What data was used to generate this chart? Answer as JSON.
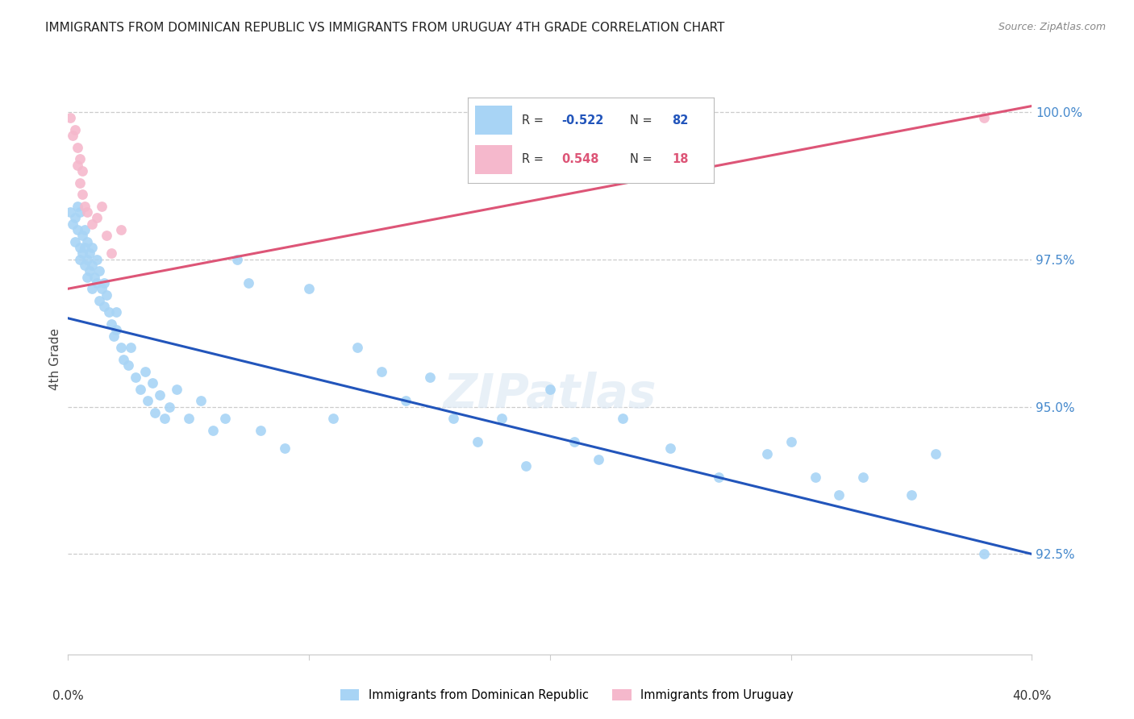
{
  "title": "IMMIGRANTS FROM DOMINICAN REPUBLIC VS IMMIGRANTS FROM URUGUAY 4TH GRADE CORRELATION CHART",
  "source": "Source: ZipAtlas.com",
  "ylabel": "4th Grade",
  "ytick_values": [
    0.925,
    0.95,
    0.975,
    1.0
  ],
  "ytick_labels": [
    "92.5%",
    "95.0%",
    "97.5%",
    "100.0%"
  ],
  "xlim": [
    0.0,
    0.4
  ],
  "ylim": [
    0.908,
    1.008
  ],
  "legend_blue_r": "-0.522",
  "legend_blue_n": "82",
  "legend_pink_r": "0.548",
  "legend_pink_n": "18",
  "blue_color": "#a8d4f5",
  "pink_color": "#f5b8cc",
  "blue_line_color": "#2255bb",
  "pink_line_color": "#dd5577",
  "blue_scatter": [
    [
      0.001,
      0.983
    ],
    [
      0.002,
      0.981
    ],
    [
      0.003,
      0.982
    ],
    [
      0.003,
      0.978
    ],
    [
      0.004,
      0.984
    ],
    [
      0.004,
      0.98
    ],
    [
      0.005,
      0.983
    ],
    [
      0.005,
      0.977
    ],
    [
      0.005,
      0.975
    ],
    [
      0.006,
      0.979
    ],
    [
      0.006,
      0.976
    ],
    [
      0.007,
      0.98
    ],
    [
      0.007,
      0.977
    ],
    [
      0.007,
      0.974
    ],
    [
      0.008,
      0.978
    ],
    [
      0.008,
      0.975
    ],
    [
      0.008,
      0.972
    ],
    [
      0.009,
      0.976
    ],
    [
      0.009,
      0.973
    ],
    [
      0.01,
      0.977
    ],
    [
      0.01,
      0.974
    ],
    [
      0.01,
      0.97
    ],
    [
      0.011,
      0.972
    ],
    [
      0.012,
      0.975
    ],
    [
      0.012,
      0.971
    ],
    [
      0.013,
      0.968
    ],
    [
      0.013,
      0.973
    ],
    [
      0.014,
      0.97
    ],
    [
      0.015,
      0.967
    ],
    [
      0.015,
      0.971
    ],
    [
      0.016,
      0.969
    ],
    [
      0.017,
      0.966
    ],
    [
      0.018,
      0.964
    ],
    [
      0.019,
      0.962
    ],
    [
      0.02,
      0.966
    ],
    [
      0.02,
      0.963
    ],
    [
      0.022,
      0.96
    ],
    [
      0.023,
      0.958
    ],
    [
      0.025,
      0.957
    ],
    [
      0.026,
      0.96
    ],
    [
      0.028,
      0.955
    ],
    [
      0.03,
      0.953
    ],
    [
      0.032,
      0.956
    ],
    [
      0.033,
      0.951
    ],
    [
      0.035,
      0.954
    ],
    [
      0.036,
      0.949
    ],
    [
      0.038,
      0.952
    ],
    [
      0.04,
      0.948
    ],
    [
      0.042,
      0.95
    ],
    [
      0.045,
      0.953
    ],
    [
      0.05,
      0.948
    ],
    [
      0.055,
      0.951
    ],
    [
      0.06,
      0.946
    ],
    [
      0.065,
      0.948
    ],
    [
      0.07,
      0.975
    ],
    [
      0.075,
      0.971
    ],
    [
      0.08,
      0.946
    ],
    [
      0.09,
      0.943
    ],
    [
      0.1,
      0.97
    ],
    [
      0.11,
      0.948
    ],
    [
      0.12,
      0.96
    ],
    [
      0.13,
      0.956
    ],
    [
      0.14,
      0.951
    ],
    [
      0.15,
      0.955
    ],
    [
      0.16,
      0.948
    ],
    [
      0.17,
      0.944
    ],
    [
      0.18,
      0.948
    ],
    [
      0.19,
      0.94
    ],
    [
      0.2,
      0.953
    ],
    [
      0.21,
      0.944
    ],
    [
      0.22,
      0.941
    ],
    [
      0.23,
      0.948
    ],
    [
      0.25,
      0.943
    ],
    [
      0.27,
      0.938
    ],
    [
      0.29,
      0.942
    ],
    [
      0.3,
      0.944
    ],
    [
      0.31,
      0.938
    ],
    [
      0.32,
      0.935
    ],
    [
      0.33,
      0.938
    ],
    [
      0.35,
      0.935
    ],
    [
      0.36,
      0.942
    ],
    [
      0.38,
      0.925
    ]
  ],
  "pink_scatter": [
    [
      0.001,
      0.999
    ],
    [
      0.002,
      0.996
    ],
    [
      0.003,
      0.997
    ],
    [
      0.004,
      0.994
    ],
    [
      0.004,
      0.991
    ],
    [
      0.005,
      0.992
    ],
    [
      0.005,
      0.988
    ],
    [
      0.006,
      0.99
    ],
    [
      0.006,
      0.986
    ],
    [
      0.007,
      0.984
    ],
    [
      0.008,
      0.983
    ],
    [
      0.01,
      0.981
    ],
    [
      0.012,
      0.982
    ],
    [
      0.014,
      0.984
    ],
    [
      0.016,
      0.979
    ],
    [
      0.018,
      0.976
    ],
    [
      0.022,
      0.98
    ],
    [
      0.38,
      0.999
    ]
  ],
  "blue_trendline": [
    0.0,
    0.4,
    0.965,
    0.925
  ],
  "pink_trendline": [
    0.0,
    0.4,
    0.97,
    1.001
  ]
}
